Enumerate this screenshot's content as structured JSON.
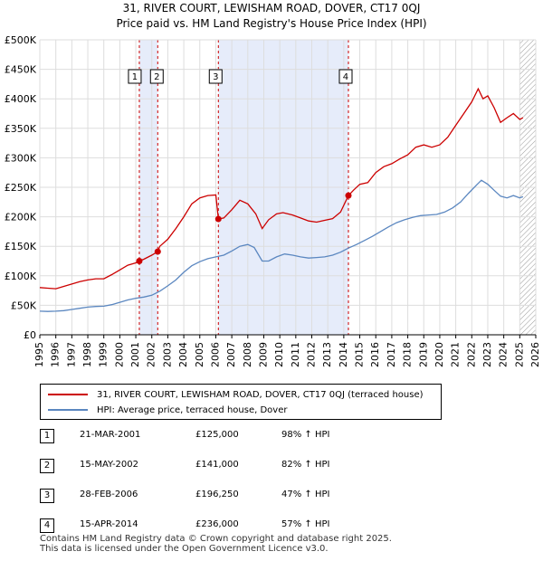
{
  "title_line1": "31, RIVER COURT, LEWISHAM ROAD, DOVER, CT17 0QJ",
  "title_line2": "Price paid vs. HM Land Registry's House Price Index (HPI)",
  "chart_data": {
    "type": "line",
    "xlim": [
      1995,
      2026
    ],
    "ylim": [
      0,
      500000
    ],
    "x_ticks": [
      1995,
      1996,
      1997,
      1998,
      1999,
      2000,
      2001,
      2002,
      2003,
      2004,
      2005,
      2006,
      2007,
      2008,
      2009,
      2010,
      2011,
      2012,
      2013,
      2014,
      2015,
      2016,
      2017,
      2018,
      2019,
      2020,
      2021,
      2022,
      2023,
      2024,
      2025,
      2026
    ],
    "y_ticks": [
      {
        "value": 0,
        "label": "£0"
      },
      {
        "value": 50000,
        "label": "£50K"
      },
      {
        "value": 100000,
        "label": "£100K"
      },
      {
        "value": 150000,
        "label": "£150K"
      },
      {
        "value": 200000,
        "label": "£200K"
      },
      {
        "value": 250000,
        "label": "£250K"
      },
      {
        "value": 300000,
        "label": "£300K"
      },
      {
        "value": 350000,
        "label": "£350K"
      },
      {
        "value": 400000,
        "label": "£400K"
      },
      {
        "value": 450000,
        "label": "£450K"
      },
      {
        "value": 500000,
        "label": "£500K"
      }
    ],
    "grid": true,
    "shaded_periods": [
      [
        2001.22,
        2002.37
      ],
      [
        2006.16,
        2014.29
      ]
    ],
    "future_hatch_from": 2025.0,
    "series": [
      {
        "name": "31, RIVER COURT, LEWISHAM ROAD, DOVER, CT17 0QJ (terraced house)",
        "color": "#cc0000",
        "points": [
          [
            1995.0,
            80000
          ],
          [
            1995.5,
            79000
          ],
          [
            1996.0,
            78000
          ],
          [
            1996.5,
            82000
          ],
          [
            1997.0,
            86000
          ],
          [
            1997.5,
            90000
          ],
          [
            1998.0,
            93000
          ],
          [
            1998.5,
            95000
          ],
          [
            1999.0,
            95000
          ],
          [
            1999.5,
            102000
          ],
          [
            2000.0,
            110000
          ],
          [
            2000.5,
            118000
          ],
          [
            2001.0,
            122000
          ],
          [
            2001.22,
            125000
          ],
          [
            2001.5,
            128000
          ],
          [
            2002.0,
            135000
          ],
          [
            2002.37,
            141000
          ],
          [
            2002.5,
            150000
          ],
          [
            2003.0,
            162000
          ],
          [
            2003.5,
            180000
          ],
          [
            2004.0,
            200000
          ],
          [
            2004.5,
            222000
          ],
          [
            2005.0,
            232000
          ],
          [
            2005.5,
            236000
          ],
          [
            2006.0,
            237000
          ],
          [
            2006.16,
            196250
          ],
          [
            2006.5,
            198000
          ],
          [
            2007.0,
            212000
          ],
          [
            2007.5,
            228000
          ],
          [
            2008.0,
            222000
          ],
          [
            2008.5,
            205000
          ],
          [
            2008.9,
            180000
          ],
          [
            2009.3,
            195000
          ],
          [
            2009.8,
            205000
          ],
          [
            2010.2,
            207000
          ],
          [
            2010.8,
            203000
          ],
          [
            2011.3,
            198000
          ],
          [
            2011.8,
            193000
          ],
          [
            2012.3,
            191000
          ],
          [
            2012.8,
            194000
          ],
          [
            2013.3,
            197000
          ],
          [
            2013.8,
            208000
          ],
          [
            2014.29,
            236000
          ],
          [
            2014.6,
            245000
          ],
          [
            2015.0,
            255000
          ],
          [
            2015.5,
            258000
          ],
          [
            2016.0,
            275000
          ],
          [
            2016.5,
            285000
          ],
          [
            2017.0,
            290000
          ],
          [
            2017.5,
            298000
          ],
          [
            2018.0,
            305000
          ],
          [
            2018.5,
            318000
          ],
          [
            2019.0,
            322000
          ],
          [
            2019.5,
            318000
          ],
          [
            2020.0,
            322000
          ],
          [
            2020.5,
            335000
          ],
          [
            2021.0,
            355000
          ],
          [
            2021.5,
            375000
          ],
          [
            2022.0,
            395000
          ],
          [
            2022.4,
            417000
          ],
          [
            2022.7,
            400000
          ],
          [
            2023.0,
            405000
          ],
          [
            2023.4,
            385000
          ],
          [
            2023.8,
            360000
          ],
          [
            2024.2,
            368000
          ],
          [
            2024.6,
            375000
          ],
          [
            2025.0,
            365000
          ],
          [
            2025.2,
            368000
          ]
        ]
      },
      {
        "name": "HPI: Average price, terraced house, Dover",
        "color": "#5b87c0",
        "points": [
          [
            1995.0,
            40000
          ],
          [
            1995.5,
            39500
          ],
          [
            1996.0,
            40000
          ],
          [
            1996.5,
            41000
          ],
          [
            1997.0,
            43000
          ],
          [
            1997.5,
            45000
          ],
          [
            1998.0,
            47000
          ],
          [
            1998.5,
            48000
          ],
          [
            1999.0,
            48500
          ],
          [
            1999.5,
            51000
          ],
          [
            2000.0,
            55000
          ],
          [
            2000.5,
            59000
          ],
          [
            2001.0,
            62000
          ],
          [
            2001.5,
            64000
          ],
          [
            2002.0,
            67000
          ],
          [
            2002.5,
            74000
          ],
          [
            2003.0,
            83000
          ],
          [
            2003.5,
            93000
          ],
          [
            2004.0,
            106000
          ],
          [
            2004.5,
            117000
          ],
          [
            2005.0,
            124000
          ],
          [
            2005.5,
            129000
          ],
          [
            2006.0,
            132000
          ],
          [
            2006.5,
            135000
          ],
          [
            2007.0,
            142000
          ],
          [
            2007.5,
            150000
          ],
          [
            2008.0,
            153000
          ],
          [
            2008.4,
            148000
          ],
          [
            2008.9,
            125000
          ],
          [
            2009.3,
            125000
          ],
          [
            2009.8,
            132000
          ],
          [
            2010.3,
            137000
          ],
          [
            2010.8,
            135000
          ],
          [
            2011.3,
            132000
          ],
          [
            2011.8,
            130000
          ],
          [
            2012.3,
            131000
          ],
          [
            2012.8,
            132000
          ],
          [
            2013.3,
            135000
          ],
          [
            2013.8,
            140000
          ],
          [
            2014.29,
            147000
          ],
          [
            2014.8,
            153000
          ],
          [
            2015.3,
            160000
          ],
          [
            2015.8,
            167000
          ],
          [
            2016.3,
            175000
          ],
          [
            2016.8,
            183000
          ],
          [
            2017.3,
            190000
          ],
          [
            2017.8,
            195000
          ],
          [
            2018.3,
            199000
          ],
          [
            2018.8,
            202000
          ],
          [
            2019.3,
            203000
          ],
          [
            2019.8,
            204000
          ],
          [
            2020.3,
            208000
          ],
          [
            2020.8,
            215000
          ],
          [
            2021.3,
            225000
          ],
          [
            2021.8,
            240000
          ],
          [
            2022.3,
            254000
          ],
          [
            2022.6,
            262000
          ],
          [
            2023.0,
            255000
          ],
          [
            2023.4,
            245000
          ],
          [
            2023.8,
            235000
          ],
          [
            2024.2,
            232000
          ],
          [
            2024.6,
            236000
          ],
          [
            2025.0,
            232000
          ],
          [
            2025.2,
            234000
          ]
        ]
      }
    ],
    "transactions": [
      {
        "id": "1",
        "date_label": "21-MAR-2001",
        "x": 2001.22,
        "price": 125000,
        "price_label": "£125,000",
        "hpi_label": "98% ↑ HPI"
      },
      {
        "id": "2",
        "date_label": "15-MAY-2002",
        "x": 2002.37,
        "price": 141000,
        "price_label": "£141,000",
        "hpi_label": "82% ↑ HPI"
      },
      {
        "id": "3",
        "date_label": "28-FEB-2006",
        "x": 2006.16,
        "price": 196250,
        "price_label": "£196,250",
        "hpi_label": "47% ↑ HPI"
      },
      {
        "id": "4",
        "date_label": "15-APR-2014",
        "x": 2014.29,
        "price": 236000,
        "price_label": "£236,000",
        "hpi_label": "57% ↑ HPI"
      }
    ]
  },
  "legend": {
    "property_label": "31, RIVER COURT, LEWISHAM ROAD, DOVER, CT17 0QJ (terraced house)",
    "hpi_label": "HPI: Average price, terraced house, Dover"
  },
  "footer": {
    "line1": "Contains HM Land Registry data © Crown copyright and database right 2025.",
    "line2": "This data is licensed under the Open Government Licence v3.0."
  }
}
